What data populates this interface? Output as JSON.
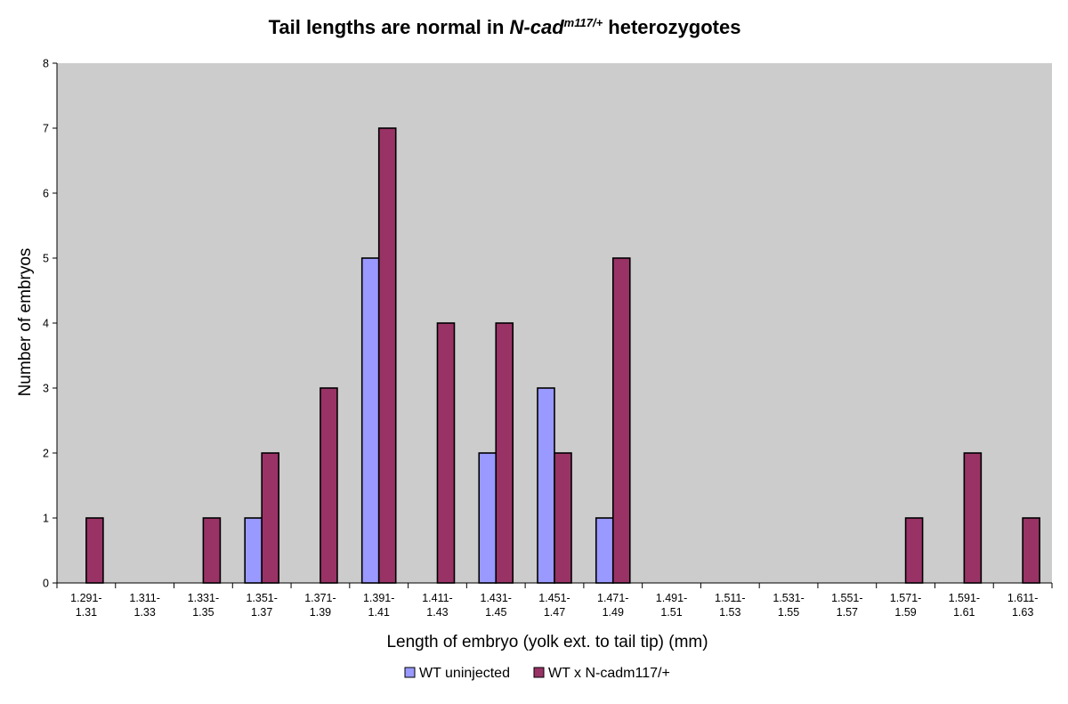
{
  "chart_data": {
    "type": "bar",
    "title": {
      "prefix": "Tail lengths are normal in ",
      "italic": "N-cad",
      "superscript": "m117/+",
      "suffix": " heterozygotes"
    },
    "xlabel": "Length of embryo (yolk ext. to tail tip) (mm)",
    "ylabel": "Number of embryos",
    "ylim": [
      0,
      8
    ],
    "yticks": [
      0,
      1,
      2,
      3,
      4,
      5,
      6,
      7,
      8
    ],
    "grid": false,
    "legend_position": "bottom",
    "categories": [
      [
        "1.291-",
        "1.31"
      ],
      [
        "1.311-",
        "1.33"
      ],
      [
        "1.331-",
        "1.35"
      ],
      [
        "1.351-",
        "1.37"
      ],
      [
        "1.371-",
        "1.39"
      ],
      [
        "1.391-",
        "1.41"
      ],
      [
        "1.411-",
        "1.43"
      ],
      [
        "1.431-",
        "1.45"
      ],
      [
        "1.451-",
        "1.47"
      ],
      [
        "1.471-",
        "1.49"
      ],
      [
        "1.491-",
        "1.51"
      ],
      [
        "1.511-",
        "1.53"
      ],
      [
        "1.531-",
        "1.55"
      ],
      [
        "1.551-",
        "1.57"
      ],
      [
        "1.571-",
        "1.59"
      ],
      [
        "1.591-",
        "1.61"
      ],
      [
        "1.611-",
        "1.63"
      ]
    ],
    "series": [
      {
        "name": "WT uninjected",
        "color": "#9999ff",
        "values": [
          0,
          0,
          0,
          1,
          0,
          5,
          0,
          2,
          3,
          1,
          0,
          0,
          0,
          0,
          0,
          0,
          0
        ]
      },
      {
        "name": "WT x N-cadm117/+",
        "color": "#993366",
        "values": [
          1,
          0,
          1,
          2,
          3,
          7,
          4,
          4,
          2,
          5,
          0,
          0,
          0,
          0,
          1,
          2,
          1
        ]
      }
    ],
    "colors": {
      "plot_background": "#cccccc",
      "axis": "#000000"
    }
  }
}
